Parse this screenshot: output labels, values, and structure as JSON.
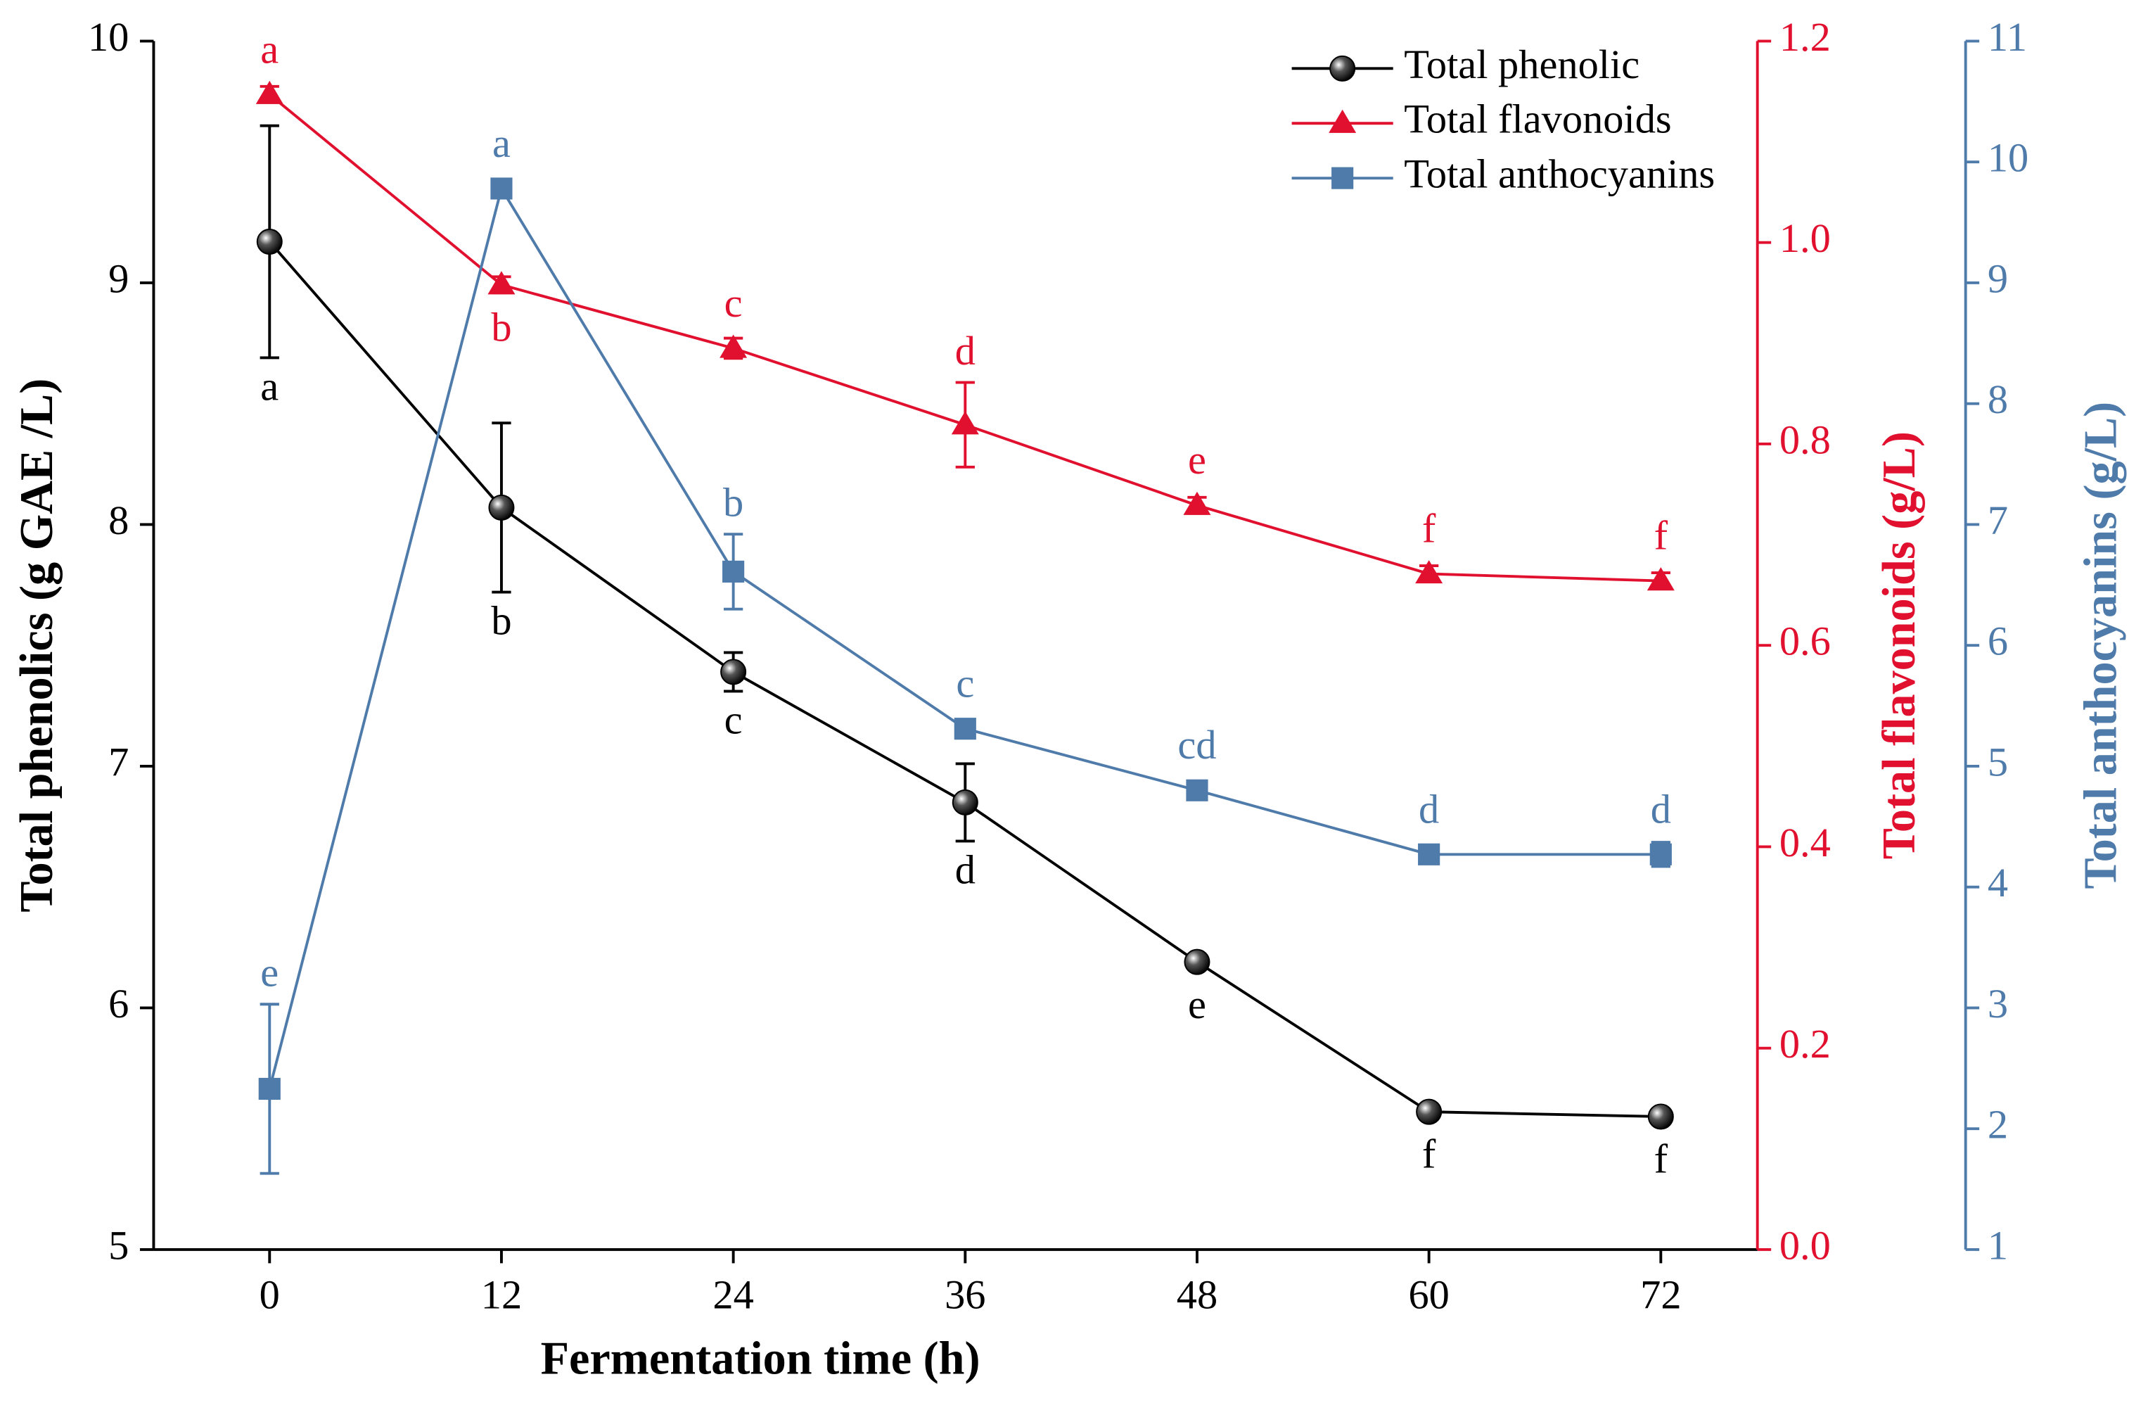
{
  "chart_data": {
    "type": "line",
    "x_label": "Fermentation time (h)",
    "y_label": "Total phenolics (g GAE /L)",
    "y2_label": "Total flavonoids (g/L)",
    "y3_label": "Total anthocyanins (g/L)",
    "x": [
      0,
      12,
      24,
      36,
      48,
      60,
      72
    ],
    "xlim": [
      -6,
      77
    ],
    "xticks": [
      0,
      12,
      24,
      36,
      48,
      60,
      72
    ],
    "ylim": [
      5,
      10
    ],
    "yticks": [
      5,
      6,
      7,
      8,
      9,
      10
    ],
    "y2lim": [
      0,
      1.2
    ],
    "y2ticks": [
      {
        "value": 0,
        "label": "0.0"
      },
      0.2,
      0.4,
      0.6,
      0.8,
      {
        "value": 1,
        "label": "1.0"
      },
      1.2
    ],
    "y3lim": [
      1,
      11
    ],
    "y3ticks": [
      1,
      2,
      3,
      4,
      5,
      6,
      7,
      8,
      9,
      10,
      11
    ],
    "legend": "upper right",
    "series": [
      {
        "name": "Total phenolic",
        "color": "#000000",
        "marker": "circle",
        "axis": "y",
        "values": [
          9.17,
          8.07,
          7.39,
          6.85,
          6.19,
          5.57,
          5.55
        ],
        "errors": [
          0.48,
          0.35,
          0.08,
          0.16,
          0.03,
          0.03,
          0.03
        ],
        "letters": [
          "a",
          "b",
          "c",
          "d",
          "e",
          "f",
          "f"
        ]
      },
      {
        "name": "Total flavonoids",
        "color": "#e0102e",
        "marker": "triangle",
        "axis": "y2",
        "values": [
          1.147,
          0.958,
          0.895,
          0.819,
          0.739,
          0.671,
          0.664
        ],
        "errors": [
          0.008,
          0.008,
          0.01,
          0.042,
          0.008,
          0.008,
          0.008
        ],
        "letters": [
          "a",
          "b",
          "c",
          "d",
          "e",
          "f",
          "f"
        ]
      },
      {
        "name": "Total anthocyanins",
        "color": "#4f7bab",
        "marker": "square",
        "axis": "y3",
        "values": [
          2.33,
          9.78,
          6.61,
          5.31,
          4.8,
          4.27,
          4.27
        ],
        "errors": [
          0.7,
          0.05,
          0.31,
          0.05,
          0.05,
          0.05,
          0.1
        ],
        "letters": [
          "e",
          "a",
          "b",
          "c",
          "cd",
          "d",
          "d"
        ]
      }
    ]
  }
}
